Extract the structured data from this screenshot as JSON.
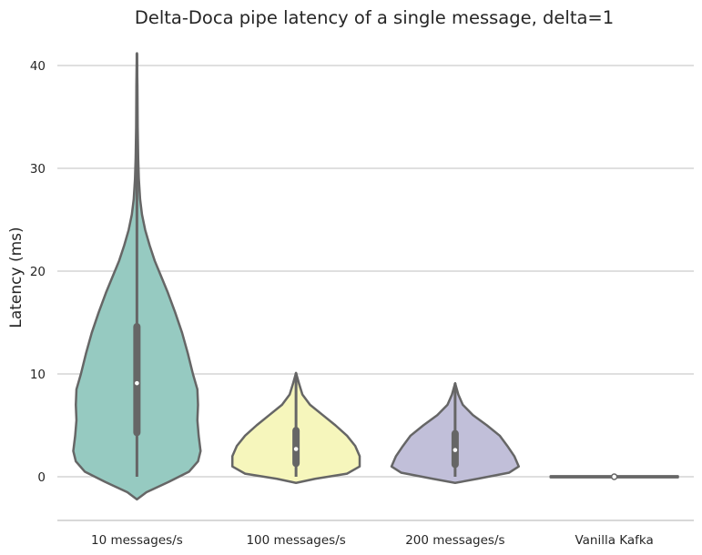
{
  "chart_data": {
    "type": "violin",
    "title": "Delta-Doca pipe latency of a single message, delta=1",
    "xlabel": "",
    "ylabel": "Latency (ms)",
    "ylim": [
      -4.3,
      42.5
    ],
    "yticks": [
      0,
      10,
      20,
      30,
      40
    ],
    "grid": "horizontal",
    "categories": [
      "10 messages/s",
      "100 messages/s",
      "200 messages/s",
      "Vanilla Kafka"
    ],
    "colors": [
      "#96cac1",
      "#f6f6bc",
      "#c1bfd9",
      "#96cac1"
    ],
    "outline_color": "#666666",
    "violins": [
      {
        "category": "10 messages/s",
        "whisker_min": 0.0,
        "q1": 4.3,
        "median": 9.1,
        "q3": 14.6,
        "whisker_max": 41.2,
        "density_profile": [
          [
            -2.2,
            0.0
          ],
          [
            -1.5,
            0.15
          ],
          [
            -0.5,
            0.5
          ],
          [
            0.5,
            0.82
          ],
          [
            1.5,
            0.96
          ],
          [
            2.5,
            1.0
          ],
          [
            4.0,
            0.97
          ],
          [
            5.5,
            0.95
          ],
          [
            7.0,
            0.96
          ],
          [
            8.5,
            0.95
          ],
          [
            10.0,
            0.88
          ],
          [
            12.0,
            0.8
          ],
          [
            14.0,
            0.71
          ],
          [
            16.0,
            0.6
          ],
          [
            18.0,
            0.48
          ],
          [
            19.5,
            0.38
          ],
          [
            21.0,
            0.28
          ],
          [
            22.5,
            0.2
          ],
          [
            24.0,
            0.13
          ],
          [
            25.5,
            0.08
          ],
          [
            27.0,
            0.05
          ],
          [
            29.0,
            0.03
          ],
          [
            31.0,
            0.02
          ],
          [
            34.0,
            0.012
          ],
          [
            38.0,
            0.008
          ],
          [
            41.2,
            0.0
          ]
        ]
      },
      {
        "category": "100 messages/s",
        "whisker_min": 0.0,
        "q1": 1.3,
        "median": 2.7,
        "q3": 4.5,
        "whisker_max": 10.1,
        "density_profile": [
          [
            -0.6,
            0.0
          ],
          [
            -0.2,
            0.3
          ],
          [
            0.3,
            0.8
          ],
          [
            1.0,
            1.0
          ],
          [
            2.0,
            1.0
          ],
          [
            3.0,
            0.93
          ],
          [
            4.0,
            0.8
          ],
          [
            5.0,
            0.62
          ],
          [
            6.0,
            0.42
          ],
          [
            7.0,
            0.22
          ],
          [
            8.0,
            0.1
          ],
          [
            9.0,
            0.05
          ],
          [
            10.1,
            0.0
          ]
        ]
      },
      {
        "category": "200 messages/s",
        "whisker_min": 0.0,
        "q1": 1.2,
        "median": 2.6,
        "q3": 4.2,
        "whisker_max": 9.1,
        "density_profile": [
          [
            -0.6,
            0.0
          ],
          [
            -0.2,
            0.35
          ],
          [
            0.4,
            0.85
          ],
          [
            1.0,
            1.0
          ],
          [
            2.0,
            0.93
          ],
          [
            3.0,
            0.82
          ],
          [
            4.0,
            0.7
          ],
          [
            5.0,
            0.5
          ],
          [
            6.0,
            0.28
          ],
          [
            7.0,
            0.12
          ],
          [
            8.0,
            0.05
          ],
          [
            9.1,
            0.0
          ]
        ]
      },
      {
        "category": "Vanilla Kafka",
        "whisker_min": 0.0,
        "q1": 0.0,
        "median": 0.0,
        "q3": 0.0,
        "whisker_max": 0.0,
        "density_profile": [
          [
            -0.05,
            1.0
          ],
          [
            0.05,
            1.0
          ]
        ]
      }
    ]
  }
}
